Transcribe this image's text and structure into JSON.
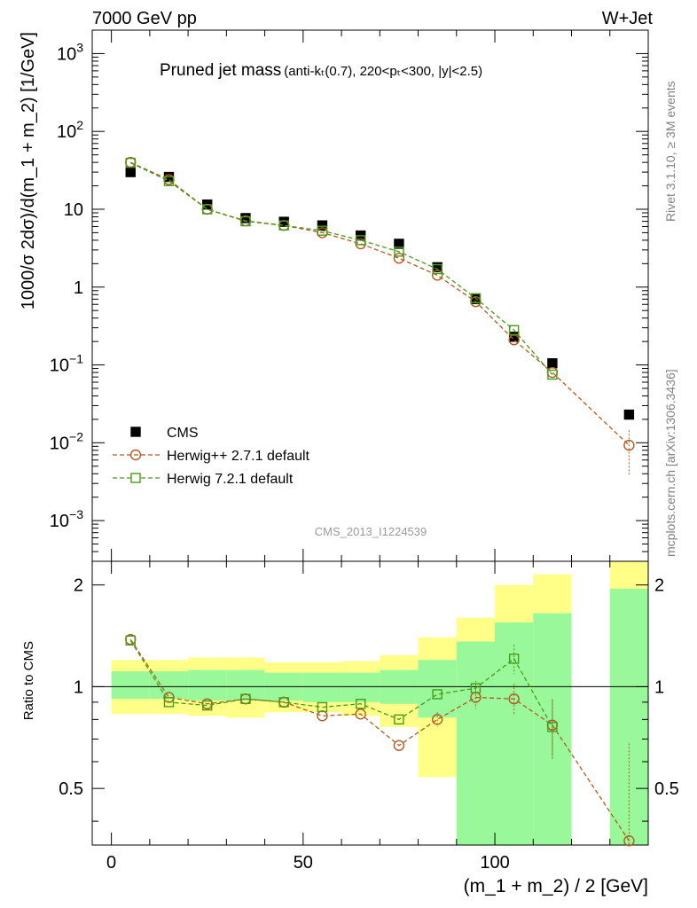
{
  "header": {
    "left": "7000 GeV pp",
    "right": "W+Jet"
  },
  "side": {
    "rivet": "Rivet 3.1.10, ≥ 3M events",
    "mcplots": "mcplots.cern.ch [arXiv:1306.3436]"
  },
  "chart_data": {
    "type": "scatter",
    "title": "Pruned jet mass",
    "title_sub": "(anti-k_T(0.7), 220<p_T<300, |y|<2.5)",
    "watermark": "CMS_2013_I1224539",
    "xlabel": "(m_1 + m_2) / 2 [GeV]",
    "ylabel": "1000/σ 2dσ)/d(m_1 + m_2) [1/GeV]",
    "ratio_ylabel": "Ratio to CMS",
    "xlim": [
      -5,
      140
    ],
    "ylim": [
      0.0003,
      2000
    ],
    "yscale": "log",
    "ratio_ylim": [
      0.34,
      2.35
    ],
    "ratio_yscale": "log",
    "xticks": [
      "0",
      "50",
      "100"
    ],
    "ytick_labels": [
      "10^-3",
      "10^-2",
      "10^-1",
      "1",
      "10",
      "10^2",
      "10^3"
    ],
    "ratio_ticks": [
      "0.5",
      "1",
      "2"
    ],
    "x": [
      5,
      15,
      25,
      35,
      45,
      55,
      65,
      75,
      85,
      95,
      105,
      115,
      135
    ],
    "series": [
      {
        "name": "CMS",
        "color": "#000000",
        "marker": "filled-square",
        "values": [
          30,
          26,
          11.5,
          7.7,
          6.9,
          6.2,
          4.6,
          3.6,
          1.8,
          0.7,
          0.23,
          0.105,
          0.023
        ]
      },
      {
        "name": "Herwig++ 2.7.1 default",
        "color": "#b35a1f",
        "marker": "open-circle",
        "values": [
          40,
          24,
          10,
          7.1,
          6.2,
          5.0,
          3.6,
          2.35,
          1.42,
          0.65,
          0.21,
          0.08,
          0.0093
        ],
        "ratio": [
          1.38,
          0.93,
          0.89,
          0.92,
          0.9,
          0.82,
          0.83,
          0.67,
          0.8,
          0.93,
          0.92,
          0.77,
          0.35
        ],
        "ratio_err": [
          0.02,
          0.02,
          0.02,
          0.02,
          0.02,
          0.02,
          0.02,
          0.03,
          0.04,
          0.07,
          0.1,
          0.15,
          0.33
        ]
      },
      {
        "name": "Herwig 7.2.1 default",
        "color": "#4a9a1a",
        "marker": "open-square",
        "values": [
          39.5,
          23,
          10,
          7.0,
          6.2,
          5.3,
          4.0,
          2.85,
          1.7,
          0.72,
          0.28,
          0.075
        ],
        "ratio": [
          1.37,
          0.9,
          0.88,
          0.92,
          0.9,
          0.87,
          0.89,
          0.8,
          0.95,
          0.99,
          1.21,
          0.76
        ],
        "ratio_err": [
          0.02,
          0.02,
          0.02,
          0.02,
          0.02,
          0.02,
          0.02,
          0.03,
          0.03,
          0.05,
          0.12,
          0.15
        ]
      }
    ],
    "bands": {
      "edges": [
        0,
        10,
        20,
        30,
        40,
        50,
        60,
        70,
        80,
        90,
        100,
        110,
        120
      ],
      "inner": [
        [
          0.92,
          1.11
        ],
        [
          0.92,
          1.11
        ],
        [
          0.91,
          1.12
        ],
        [
          0.91,
          1.12
        ],
        [
          0.91,
          1.1
        ],
        [
          0.9,
          1.1
        ],
        [
          0.9,
          1.1
        ],
        [
          0.89,
          1.12
        ],
        [
          0.81,
          1.2
        ],
        [
          0.34,
          1.36
        ],
        [
          0.34,
          1.55
        ],
        [
          0.34,
          1.65
        ]
      ],
      "outer": [
        [
          0.83,
          1.2
        ],
        [
          0.83,
          1.2
        ],
        [
          0.82,
          1.22
        ],
        [
          0.81,
          1.22
        ],
        [
          0.84,
          1.18
        ],
        [
          0.84,
          1.18
        ],
        [
          0.82,
          1.19
        ],
        [
          0.76,
          1.24
        ],
        [
          0.54,
          1.4
        ],
        [
          0.34,
          1.6
        ],
        [
          0.34,
          2.0
        ],
        [
          0.34,
          2.15
        ]
      ],
      "last": {
        "x0": 130,
        "x1": 140,
        "inner": [
          0.34,
          1.95
        ],
        "outer": [
          0.34,
          2.35
        ]
      }
    }
  }
}
